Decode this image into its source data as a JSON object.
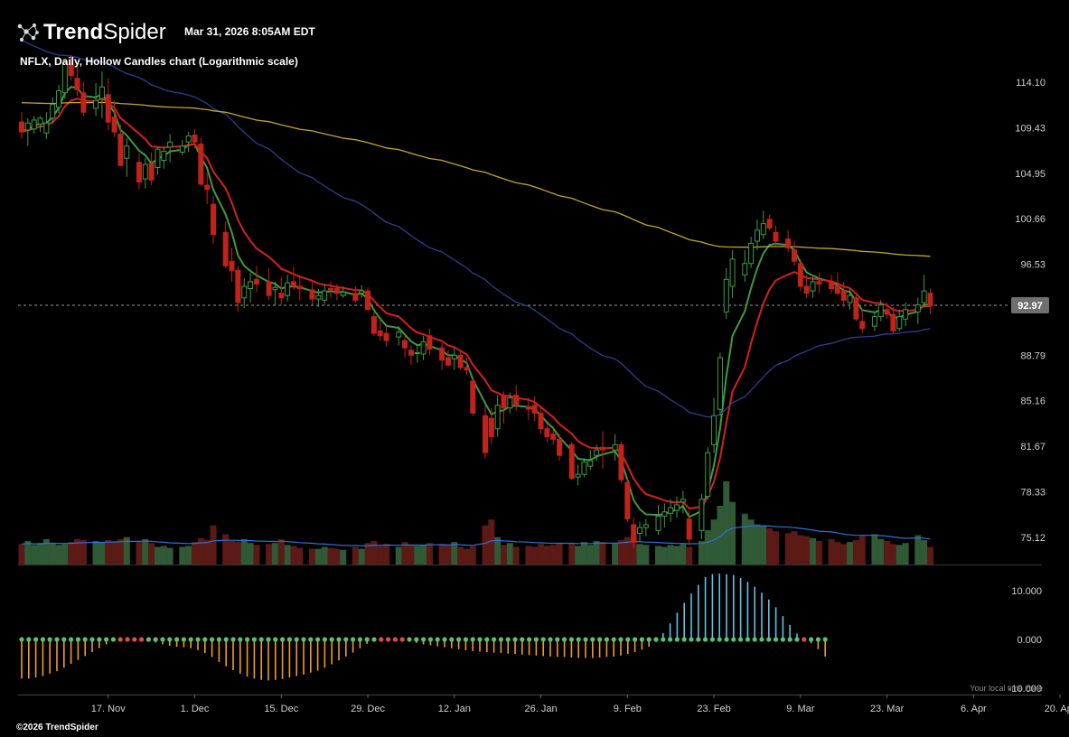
{
  "header": {
    "brand_bold": "Trend",
    "brand_light": "Spider",
    "timestamp": "Mar 31, 2026 8:05AM EDT",
    "symbol_line": "NFLX, Daily, Hollow Candles chart (Logarithmic scale)",
    "logo_icon": "trendspider-constellation-icon"
  },
  "footer": {
    "copyright": "©2026 TrendSpider",
    "timezone_note": "Your local time zone"
  },
  "colors": {
    "background": "#000000",
    "up": "#3b9d4a",
    "down": "#c0231a",
    "ma_fast": "#3e9b3e",
    "ma_slow": "#d42020",
    "ma_mid": "#2d3f8c",
    "ma_long": "#c2a52e",
    "volume_avg": "#2f6fd6",
    "osc_up": "#5ac3e6",
    "osc_down": "#f39a2a",
    "dot_green": "#5cc170",
    "dot_red": "#e04b4b"
  },
  "chart_data": {
    "type": "candlestick",
    "scale": "log",
    "title": "NFLX, Daily, Hollow Candles chart (Logarithmic scale)",
    "y_ticks": [
      "114.10",
      "109.43",
      "104.95",
      "100.66",
      "96.53",
      "88.79",
      "85.16",
      "81.67",
      "78.33",
      "75.12"
    ],
    "ylim": [
      73.7,
      116.7
    ],
    "last_price": "92.97",
    "x_ticks": [
      "17. Nov",
      "1. Dec",
      "15. Dec",
      "29. Dec",
      "12. Jan",
      "26. Jan",
      "9. Feb",
      "23. Feb",
      "9. Mar",
      "23. Mar",
      "6. Apr",
      "20. Apr"
    ],
    "x_tick_days": [
      14,
      28,
      42,
      56,
      70,
      84,
      98,
      112,
      126,
      140,
      154,
      168
    ],
    "candles": [
      {
        "d": 0,
        "o": 110.0,
        "h": 111.0,
        "l": 108.3,
        "c": 109.0,
        "v": 2.1
      },
      {
        "d": 1,
        "o": 109.2,
        "h": 110.4,
        "l": 107.6,
        "c": 109.9,
        "v": 2.4
      },
      {
        "d": 2,
        "o": 109.3,
        "h": 110.6,
        "l": 108.8,
        "c": 110.2,
        "v": 2.0
      },
      {
        "d": 3,
        "o": 109.8,
        "h": 110.6,
        "l": 109.0,
        "c": 110.4,
        "v": 2.2
      },
      {
        "d": 4,
        "o": 108.9,
        "h": 111.0,
        "l": 108.3,
        "c": 109.9,
        "v": 2.6
      },
      {
        "d": 5,
        "o": 110.4,
        "h": 112.5,
        "l": 109.8,
        "c": 111.8,
        "v": 2.2
      },
      {
        "d": 6,
        "o": 111.5,
        "h": 113.8,
        "l": 110.9,
        "c": 113.2,
        "v": 2.0
      },
      {
        "d": 7,
        "o": 113.0,
        "h": 116.4,
        "l": 112.4,
        "c": 116.2,
        "v": 2.1
      },
      {
        "d": 8,
        "o": 116.0,
        "h": 117.0,
        "l": 114.3,
        "c": 114.8,
        "v": 2.3
      },
      {
        "d": 9,
        "o": 114.5,
        "h": 116.2,
        "l": 112.6,
        "c": 113.3,
        "v": 2.6
      },
      {
        "d": 10,
        "o": 113.0,
        "h": 114.1,
        "l": 110.6,
        "c": 111.0,
        "v": 2.5
      },
      {
        "d": 12,
        "o": 111.4,
        "h": 114.0,
        "l": 110.6,
        "c": 112.2,
        "v": 2.4
      },
      {
        "d": 13,
        "o": 112.4,
        "h": 115.2,
        "l": 110.4,
        "c": 113.6,
        "v": 2.3
      },
      {
        "d": 14,
        "o": 112.8,
        "h": 114.5,
        "l": 109.2,
        "c": 110.0,
        "v": 2.5
      },
      {
        "d": 15,
        "o": 110.5,
        "h": 112.2,
        "l": 108.5,
        "c": 109.0,
        "v": 2.4
      },
      {
        "d": 16,
        "o": 108.8,
        "h": 109.7,
        "l": 105.6,
        "c": 105.7,
        "v": 2.6
      },
      {
        "d": 17,
        "o": 106.4,
        "h": 108.4,
        "l": 104.6,
        "c": 107.6,
        "v": 2.8
      },
      {
        "d": 19,
        "o": 106.0,
        "h": 106.9,
        "l": 103.4,
        "c": 104.1,
        "v": 2.3
      },
      {
        "d": 20,
        "o": 104.4,
        "h": 106.4,
        "l": 103.5,
        "c": 105.8,
        "v": 2.6
      },
      {
        "d": 21,
        "o": 105.9,
        "h": 107.0,
        "l": 103.8,
        "c": 104.3,
        "v": 2.2
      },
      {
        "d": 22,
        "o": 105.5,
        "h": 107.5,
        "l": 104.8,
        "c": 107.3,
        "v": 1.8
      },
      {
        "d": 23,
        "o": 106.2,
        "h": 107.6,
        "l": 105.4,
        "c": 107.1,
        "v": 1.9
      },
      {
        "d": 24,
        "o": 107.5,
        "h": 108.8,
        "l": 106.0,
        "c": 108.0,
        "v": 1.7
      },
      {
        "d": 26,
        "o": 107.0,
        "h": 108.2,
        "l": 106.7,
        "c": 107.6,
        "v": 1.8
      },
      {
        "d": 27,
        "o": 108.0,
        "h": 109.0,
        "l": 107.0,
        "c": 108.6,
        "v": 1.9
      },
      {
        "d": 28,
        "o": 108.7,
        "h": 109.3,
        "l": 107.4,
        "c": 108.0,
        "v": 2.3
      },
      {
        "d": 29,
        "o": 107.8,
        "h": 108.4,
        "l": 103.8,
        "c": 103.9,
        "v": 2.7
      },
      {
        "d": 30,
        "o": 103.8,
        "h": 105.0,
        "l": 102.0,
        "c": 103.4,
        "v": 2.5
      },
      {
        "d": 31,
        "o": 102.0,
        "h": 102.8,
        "l": 98.4,
        "c": 99.2,
        "v": 4.0
      },
      {
        "d": 33,
        "o": 99.4,
        "h": 100.4,
        "l": 96.2,
        "c": 96.4,
        "v": 3.1
      },
      {
        "d": 34,
        "o": 96.8,
        "h": 98.0,
        "l": 95.0,
        "c": 96.0,
        "v": 2.4
      },
      {
        "d": 35,
        "o": 96.0,
        "h": 96.4,
        "l": 92.4,
        "c": 93.2,
        "v": 2.3
      },
      {
        "d": 36,
        "o": 93.6,
        "h": 95.3,
        "l": 92.7,
        "c": 94.6,
        "v": 2.6
      },
      {
        "d": 37,
        "o": 94.4,
        "h": 95.8,
        "l": 93.2,
        "c": 95.0,
        "v": 2.2
      },
      {
        "d": 38,
        "o": 95.2,
        "h": 96.4,
        "l": 94.1,
        "c": 94.8,
        "v": 2.0
      },
      {
        "d": 40,
        "o": 95.0,
        "h": 96.2,
        "l": 93.4,
        "c": 93.8,
        "v": 2.1
      },
      {
        "d": 41,
        "o": 94.3,
        "h": 95.0,
        "l": 93.0,
        "c": 94.5,
        "v": 2.2
      },
      {
        "d": 42,
        "o": 94.0,
        "h": 95.4,
        "l": 93.0,
        "c": 93.6,
        "v": 2.6
      },
      {
        "d": 43,
        "o": 93.8,
        "h": 95.6,
        "l": 93.3,
        "c": 94.9,
        "v": 2.0
      },
      {
        "d": 44,
        "o": 95.0,
        "h": 96.3,
        "l": 94.3,
        "c": 94.6,
        "v": 1.9
      },
      {
        "d": 45,
        "o": 94.6,
        "h": 95.4,
        "l": 93.4,
        "c": 94.4,
        "v": 1.7
      },
      {
        "d": 47,
        "o": 94.3,
        "h": 95.0,
        "l": 93.0,
        "c": 93.5,
        "v": 1.6
      },
      {
        "d": 48,
        "o": 93.5,
        "h": 94.4,
        "l": 92.8,
        "c": 93.8,
        "v": 1.6
      },
      {
        "d": 49,
        "o": 93.4,
        "h": 94.8,
        "l": 93.0,
        "c": 94.2,
        "v": 1.8
      },
      {
        "d": 50,
        "o": 94.4,
        "h": 95.0,
        "l": 93.6,
        "c": 94.3,
        "v": 1.7
      },
      {
        "d": 51,
        "o": 94.4,
        "h": 94.8,
        "l": 93.4,
        "c": 94.0,
        "v": 1.6
      },
      {
        "d": 52,
        "o": 93.8,
        "h": 94.6,
        "l": 93.6,
        "c": 94.1,
        "v": 1.5
      },
      {
        "d": 54,
        "o": 94.0,
        "h": 94.6,
        "l": 93.2,
        "c": 93.4,
        "v": 1.8
      },
      {
        "d": 55,
        "o": 94.0,
        "h": 94.7,
        "l": 93.6,
        "c": 94.2,
        "v": 1.6
      },
      {
        "d": 56,
        "o": 94.2,
        "h": 94.5,
        "l": 92.5,
        "c": 92.6,
        "v": 2.2
      },
      {
        "d": 57,
        "o": 92.0,
        "h": 92.4,
        "l": 90.4,
        "c": 90.6,
        "v": 2.4
      },
      {
        "d": 58,
        "o": 90.8,
        "h": 91.8,
        "l": 90.0,
        "c": 90.4,
        "v": 1.9
      },
      {
        "d": 59,
        "o": 90.6,
        "h": 91.2,
        "l": 89.5,
        "c": 90.0,
        "v": 2.1
      },
      {
        "d": 61,
        "o": 90.3,
        "h": 91.2,
        "l": 89.6,
        "c": 90.7,
        "v": 1.8
      },
      {
        "d": 62,
        "o": 90.0,
        "h": 90.4,
        "l": 88.6,
        "c": 89.4,
        "v": 2.3
      },
      {
        "d": 63,
        "o": 89.2,
        "h": 89.6,
        "l": 88.0,
        "c": 88.8,
        "v": 2.0
      },
      {
        "d": 64,
        "o": 89.0,
        "h": 89.6,
        "l": 88.2,
        "c": 89.0,
        "v": 1.9
      },
      {
        "d": 65,
        "o": 88.9,
        "h": 90.4,
        "l": 88.4,
        "c": 89.9,
        "v": 2.0
      },
      {
        "d": 66,
        "o": 90.4,
        "h": 91.0,
        "l": 88.8,
        "c": 89.3,
        "v": 2.2
      },
      {
        "d": 68,
        "o": 89.4,
        "h": 89.8,
        "l": 87.6,
        "c": 88.4,
        "v": 2.1
      },
      {
        "d": 69,
        "o": 88.6,
        "h": 89.2,
        "l": 87.8,
        "c": 88.0,
        "v": 2.0
      },
      {
        "d": 70,
        "o": 88.5,
        "h": 89.4,
        "l": 87.6,
        "c": 88.8,
        "v": 2.3
      },
      {
        "d": 71,
        "o": 88.8,
        "h": 89.2,
        "l": 87.6,
        "c": 87.8,
        "v": 1.8
      },
      {
        "d": 72,
        "o": 87.8,
        "h": 88.6,
        "l": 87.2,
        "c": 87.6,
        "v": 1.6
      },
      {
        "d": 73,
        "o": 86.7,
        "h": 87.0,
        "l": 84.0,
        "c": 84.2,
        "v": 1.9
      },
      {
        "d": 75,
        "o": 84.0,
        "h": 84.8,
        "l": 80.8,
        "c": 81.2,
        "v": 4.0
      },
      {
        "d": 76,
        "o": 83.8,
        "h": 84.6,
        "l": 81.8,
        "c": 82.4,
        "v": 4.6
      },
      {
        "d": 77,
        "o": 83.0,
        "h": 85.6,
        "l": 82.4,
        "c": 84.8,
        "v": 2.8
      },
      {
        "d": 78,
        "o": 85.6,
        "h": 85.9,
        "l": 83.4,
        "c": 84.6,
        "v": 2.0
      },
      {
        "d": 79,
        "o": 84.6,
        "h": 85.8,
        "l": 84.2,
        "c": 85.4,
        "v": 2.2
      },
      {
        "d": 80,
        "o": 85.6,
        "h": 86.4,
        "l": 84.4,
        "c": 84.8,
        "v": 1.8
      },
      {
        "d": 82,
        "o": 84.7,
        "h": 85.4,
        "l": 83.7,
        "c": 84.5,
        "v": 1.9
      },
      {
        "d": 83,
        "o": 84.8,
        "h": 85.5,
        "l": 83.6,
        "c": 84.2,
        "v": 1.8
      },
      {
        "d": 84,
        "o": 84.2,
        "h": 84.6,
        "l": 82.6,
        "c": 83.0,
        "v": 2.1
      },
      {
        "d": 85,
        "o": 83.0,
        "h": 83.4,
        "l": 82.0,
        "c": 82.4,
        "v": 1.9
      },
      {
        "d": 86,
        "o": 82.6,
        "h": 83.0,
        "l": 81.8,
        "c": 82.2,
        "v": 2.0
      },
      {
        "d": 87,
        "o": 82.2,
        "h": 82.6,
        "l": 80.6,
        "c": 81.0,
        "v": 2.2
      },
      {
        "d": 89,
        "o": 81.8,
        "h": 82.0,
        "l": 79.2,
        "c": 79.3,
        "v": 2.1
      },
      {
        "d": 90,
        "o": 79.4,
        "h": 80.3,
        "l": 78.8,
        "c": 79.6,
        "v": 1.9
      },
      {
        "d": 91,
        "o": 79.6,
        "h": 80.8,
        "l": 79.4,
        "c": 80.5,
        "v": 2.3
      },
      {
        "d": 92,
        "o": 80.2,
        "h": 81.4,
        "l": 79.9,
        "c": 80.6,
        "v": 2.0
      },
      {
        "d": 93,
        "o": 81.0,
        "h": 81.8,
        "l": 80.6,
        "c": 81.4,
        "v": 2.4
      },
      {
        "d": 94,
        "o": 81.6,
        "h": 82.8,
        "l": 80.0,
        "c": 81.4,
        "v": 2.3
      },
      {
        "d": 96,
        "o": 81.4,
        "h": 82.6,
        "l": 80.6,
        "c": 81.8,
        "v": 2.2
      },
      {
        "d": 97,
        "o": 81.8,
        "h": 82.0,
        "l": 79.0,
        "c": 79.2,
        "v": 2.5
      },
      {
        "d": 98,
        "o": 79.0,
        "h": 79.4,
        "l": 76.2,
        "c": 76.4,
        "v": 2.8
      },
      {
        "d": 99,
        "o": 76.0,
        "h": 76.5,
        "l": 74.4,
        "c": 74.8,
        "v": 3.0
      },
      {
        "d": 100,
        "o": 75.4,
        "h": 76.2,
        "l": 74.8,
        "c": 75.8,
        "v": 2.1
      },
      {
        "d": 101,
        "o": 75.8,
        "h": 76.4,
        "l": 75.2,
        "c": 76.0,
        "v": 2.0
      },
      {
        "d": 103,
        "o": 75.6,
        "h": 77.4,
        "l": 75.3,
        "c": 76.6,
        "v": 1.9
      },
      {
        "d": 104,
        "o": 76.6,
        "h": 77.5,
        "l": 75.8,
        "c": 76.9,
        "v": 1.8
      },
      {
        "d": 105,
        "o": 76.8,
        "h": 77.8,
        "l": 76.2,
        "c": 77.2,
        "v": 2.0
      },
      {
        "d": 106,
        "o": 77.0,
        "h": 78.0,
        "l": 76.5,
        "c": 77.4,
        "v": 1.9
      },
      {
        "d": 107,
        "o": 77.6,
        "h": 78.4,
        "l": 76.8,
        "c": 77.8,
        "v": 2.1
      },
      {
        "d": 108,
        "o": 76.4,
        "h": 77.0,
        "l": 74.6,
        "c": 75.0,
        "v": 1.8
      },
      {
        "d": 110,
        "o": 75.6,
        "h": 78.2,
        "l": 75.0,
        "c": 77.8,
        "v": 2.4
      },
      {
        "d": 111,
        "o": 78.0,
        "h": 81.6,
        "l": 77.8,
        "c": 81.2,
        "v": 3.5
      },
      {
        "d": 112,
        "o": 81.8,
        "h": 85.4,
        "l": 81.2,
        "c": 84.0,
        "v": 4.6
      },
      {
        "d": 113,
        "o": 84.5,
        "h": 89.0,
        "l": 84.0,
        "c": 88.6,
        "v": 6.0
      },
      {
        "d": 114,
        "o": 92.4,
        "h": 96.2,
        "l": 91.8,
        "c": 95.2,
        "v": 8.5
      },
      {
        "d": 115,
        "o": 94.6,
        "h": 97.8,
        "l": 93.6,
        "c": 97.0,
        "v": 6.4
      },
      {
        "d": 117,
        "o": 95.6,
        "h": 97.8,
        "l": 95.0,
        "c": 96.6,
        "v": 5.2
      },
      {
        "d": 118,
        "o": 96.6,
        "h": 99.0,
        "l": 96.2,
        "c": 98.4,
        "v": 4.6
      },
      {
        "d": 119,
        "o": 98.6,
        "h": 100.6,
        "l": 97.8,
        "c": 99.6,
        "v": 4.1
      },
      {
        "d": 120,
        "o": 99.2,
        "h": 101.4,
        "l": 98.8,
        "c": 100.2,
        "v": 4.0
      },
      {
        "d": 121,
        "o": 100.6,
        "h": 101.0,
        "l": 99.6,
        "c": 99.8,
        "v": 3.7
      },
      {
        "d": 122,
        "o": 99.4,
        "h": 100.0,
        "l": 98.2,
        "c": 98.6,
        "v": 3.4
      },
      {
        "d": 124,
        "o": 98.8,
        "h": 99.6,
        "l": 97.6,
        "c": 98.0,
        "v": 3.2
      },
      {
        "d": 125,
        "o": 97.8,
        "h": 98.6,
        "l": 96.4,
        "c": 96.8,
        "v": 3.4
      },
      {
        "d": 126,
        "o": 96.6,
        "h": 97.0,
        "l": 94.2,
        "c": 94.6,
        "v": 3.0
      },
      {
        "d": 127,
        "o": 94.6,
        "h": 95.6,
        "l": 93.6,
        "c": 94.0,
        "v": 2.9
      },
      {
        "d": 128,
        "o": 94.2,
        "h": 95.4,
        "l": 93.6,
        "c": 95.0,
        "v": 2.7
      },
      {
        "d": 129,
        "o": 95.0,
        "h": 95.8,
        "l": 94.0,
        "c": 94.8,
        "v": 2.4
      },
      {
        "d": 131,
        "o": 95.0,
        "h": 95.6,
        "l": 94.0,
        "c": 94.4,
        "v": 2.6
      },
      {
        "d": 132,
        "o": 94.6,
        "h": 95.8,
        "l": 93.8,
        "c": 94.0,
        "v": 2.3
      },
      {
        "d": 133,
        "o": 94.2,
        "h": 95.0,
        "l": 92.8,
        "c": 93.4,
        "v": 2.1
      },
      {
        "d": 134,
        "o": 93.2,
        "h": 94.4,
        "l": 92.6,
        "c": 93.8,
        "v": 2.3
      },
      {
        "d": 135,
        "o": 93.6,
        "h": 94.0,
        "l": 91.6,
        "c": 91.8,
        "v": 2.5
      },
      {
        "d": 136,
        "o": 91.6,
        "h": 92.6,
        "l": 90.6,
        "c": 91.0,
        "v": 3.0
      },
      {
        "d": 138,
        "o": 91.2,
        "h": 92.4,
        "l": 90.8,
        "c": 92.0,
        "v": 3.1
      },
      {
        "d": 139,
        "o": 92.0,
        "h": 93.4,
        "l": 91.6,
        "c": 93.0,
        "v": 2.6
      },
      {
        "d": 140,
        "o": 92.6,
        "h": 93.2,
        "l": 91.8,
        "c": 92.2,
        "v": 2.4
      },
      {
        "d": 141,
        "o": 92.2,
        "h": 92.8,
        "l": 90.6,
        "c": 90.8,
        "v": 2.1
      },
      {
        "d": 142,
        "o": 91.0,
        "h": 92.6,
        "l": 90.8,
        "c": 92.0,
        "v": 2.0
      },
      {
        "d": 143,
        "o": 91.8,
        "h": 93.2,
        "l": 91.2,
        "c": 92.6,
        "v": 2.2
      },
      {
        "d": 145,
        "o": 92.4,
        "h": 93.6,
        "l": 91.4,
        "c": 93.0,
        "v": 3.0
      },
      {
        "d": 146,
        "o": 93.2,
        "h": 95.6,
        "l": 92.8,
        "c": 94.2,
        "v": 2.5
      },
      {
        "d": 147,
        "o": 94.0,
        "h": 94.4,
        "l": 92.2,
        "c": 92.9,
        "v": 1.8
      }
    ],
    "oscillator": {
      "ylim": [
        -10.0,
        12.0
      ],
      "y_ticks": [
        "10.000",
        "0.000",
        "-10.000"
      ],
      "values": [
        -8,
        -8,
        -7.8,
        -7.5,
        -7,
        -6.5,
        -5.8,
        -5,
        -4.2,
        -3.4,
        -2.6,
        -1.8,
        -1,
        -0.4,
        0.3,
        0.5,
        0.4,
        0.2,
        -0.2,
        -0.6,
        -1,
        -1.3,
        -1.5,
        -1.6,
        -1.8,
        -2.2,
        -2.8,
        -3.6,
        -4.6,
        -5.5,
        -6.3,
        -7,
        -7.6,
        -8,
        -8.3,
        -8.4,
        -8.3,
        -8.1,
        -7.8,
        -7.5,
        -7.2,
        -6.8,
        -6.4,
        -5.8,
        -5.1,
        -4.3,
        -3.5,
        -2.7,
        -1.8,
        -0.9,
        -0.2,
        0.3,
        0.4,
        0.3,
        0.2,
        -0.3,
        -0.7,
        -1,
        -1.2,
        -1.4,
        -1.6,
        -1.8,
        -2,
        -2.2,
        -2.4,
        -2.5,
        -2.6,
        -2.7,
        -2.8,
        -2.9,
        -3,
        -3.1,
        -3.2,
        -3.3,
        -3.4,
        -3.5,
        -3.6,
        -3.6,
        -3.7,
        -3.8,
        -3.8,
        -3.8,
        -3.7,
        -3.6,
        -3.5,
        -3.3,
        -3,
        -2.6,
        -2.1,
        -1.5,
        -0.5,
        1.3,
        3.3,
        5.5,
        7.5,
        9.4,
        11.2,
        12.8,
        13.4,
        13.5,
        13.4,
        13.2,
        12.6,
        11.8,
        10.8,
        9.6,
        8.2,
        6.6,
        4.8,
        3,
        1.2,
        0.3,
        -0.8,
        -2,
        -3.5
      ]
    }
  }
}
